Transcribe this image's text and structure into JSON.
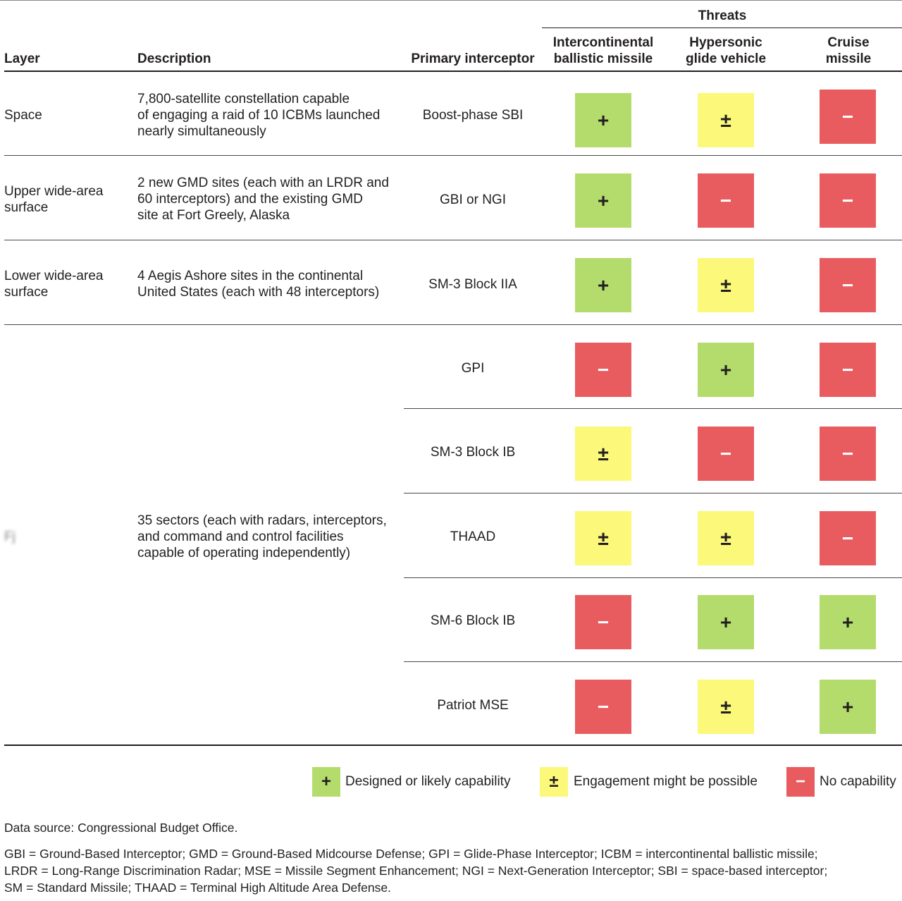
{
  "header": {
    "threats_label": "Threats",
    "layer": "Layer",
    "description": "Description",
    "primary_interceptor": "Primary interceptor",
    "icbm_line1": "Intercontinental",
    "icbm_line2": "ballistic missile",
    "hgv_line1": "Hypersonic",
    "hgv_line2": "glide vehicle",
    "cruise_line1": "Cruise",
    "cruise_line2": "missile"
  },
  "symbols": {
    "plus": "+",
    "pm": "±",
    "minus": "−"
  },
  "rows": [
    {
      "layer_line1": "Space",
      "layer_line2": "",
      "desc_line1": "7,800-satellite constellation capable",
      "desc_line2": "of engaging a raid of 10 ICBMs launched",
      "desc_line3": "nearly simultaneously",
      "interceptor": "Boost-phase SBI",
      "icbm": "+",
      "hgv": "±",
      "cruise": "−"
    },
    {
      "layer_line1": "Upper wide-area",
      "layer_line2": "surface",
      "desc_line1": "2 new GMD sites (each with an LRDR and",
      "desc_line2": "60 interceptors) and the existing GMD",
      "desc_line3": "site at Fort Greely, Alaska",
      "interceptor": "GBI or NGI",
      "icbm": "+",
      "hgv": "−",
      "cruise": "−"
    },
    {
      "layer_line1": "Lower wide-area",
      "layer_line2": "surface",
      "desc_line1": "4 Aegis Ashore sites in the continental",
      "desc_line2": "United States (each with 48 interceptors)",
      "desc_line3": "",
      "interceptor": "SM-3 Block IIA",
      "icbm": "+",
      "hgv": "±",
      "cruise": "−"
    }
  ],
  "point_layer": {
    "layer_label": "Fj",
    "desc_line1": "35 sectors (each with radars, interceptors,",
    "desc_line2": "and command and control facilities",
    "desc_line3": "capable of operating independently)",
    "interceptors": [
      {
        "name": "GPI",
        "icbm": "−",
        "hgv": "+",
        "cruise": "−"
      },
      {
        "name": "SM-3 Block IB",
        "icbm": "±",
        "hgv": "−",
        "cruise": "−"
      },
      {
        "name": "THAAD",
        "icbm": "±",
        "hgv": "±",
        "cruise": "−"
      },
      {
        "name": "SM-6 Block IB",
        "icbm": "−",
        "hgv": "+",
        "cruise": "+"
      },
      {
        "name": "Patriot MSE",
        "icbm": "−",
        "hgv": "±",
        "cruise": "+"
      }
    ]
  },
  "legend": {
    "plus_label": "Designed or likely capability",
    "pm_label": "Engagement might be possible",
    "minus_label": "No capability"
  },
  "colors": {
    "plus": "#b4dc6c",
    "pm": "#fbf87a",
    "minus": "#e85c5f"
  },
  "notes": {
    "source": "Data source: Congressional Budget Office.",
    "abbr_line1": "GBI = Ground-Based Interceptor; GMD = Ground-Based Midcourse Defense; GPI = Glide-Phase Interceptor; ICBM = intercontinental ballistic missile;",
    "abbr_line2": "LRDR = Long-Range Discrimination Radar; MSE = Missile Segment Enhancement; NGI = Next-Generation Interceptor; SBI = space-based interceptor;",
    "abbr_line3": "SM = Standard Missile; THAAD = Terminal High Altitude Area Defense."
  }
}
